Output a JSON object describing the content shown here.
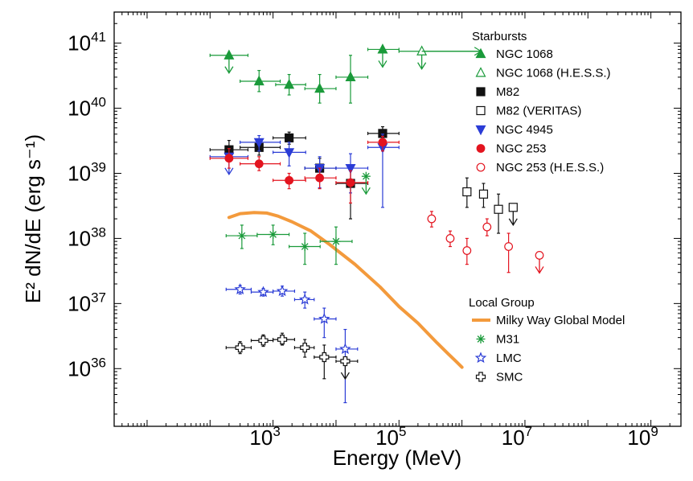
{
  "chart_data": {
    "type": "scatter",
    "title": "",
    "xlabel": "Energy (MeV)",
    "ylabel": "E² dN/dE (erg s⁻¹)",
    "xscale": "log",
    "yscale": "log",
    "xlim": [
      3,
      3000000000
    ],
    "ylim": [
      1.3e+35,
      3e+41
    ],
    "x_tick_labels": [
      {
        "base": "10",
        "exp": "3",
        "value": 1000
      },
      {
        "base": "10",
        "exp": "5",
        "value": 100000
      },
      {
        "base": "10",
        "exp": "7",
        "value": 10000000
      },
      {
        "base": "10",
        "exp": "9",
        "value": 1000000000
      }
    ],
    "y_tick_labels": [
      {
        "base": "10",
        "exp": "36",
        "value": 1e+36
      },
      {
        "base": "10",
        "exp": "37",
        "value": 1e+37
      },
      {
        "base": "10",
        "exp": "38",
        "value": 1e+38
      },
      {
        "base": "10",
        "exp": "39",
        "value": 1e+39
      },
      {
        "base": "10",
        "exp": "40",
        "value": 1e+40
      },
      {
        "base": "10",
        "exp": "41",
        "value": 1e+41
      }
    ],
    "legend_groups": [
      {
        "title": "Starbursts",
        "placement": "top-right"
      },
      {
        "title": "Local Group",
        "placement": "bottom-right"
      }
    ],
    "series": [
      {
        "name": "NGC 1068",
        "group": "Starbursts",
        "marker": "triangle-up",
        "filled": true,
        "color": "#1a9a3a",
        "points": [
          {
            "x": 200,
            "y": 6.5e+40,
            "xlo": 100,
            "xhi": 400,
            "ul": true
          },
          {
            "x": 600,
            "y": 2.6e+40,
            "xlo": 300,
            "xhi": 1300,
            "ylo": 1.8e+40,
            "yhi": 3.8e+40
          },
          {
            "x": 1800,
            "y": 2.3e+40,
            "xlo": 1100,
            "xhi": 3300,
            "ylo": 1.6e+40,
            "yhi": 3.3e+40
          },
          {
            "x": 5500,
            "y": 2e+40,
            "xlo": 3200,
            "xhi": 10000,
            "ylo": 1.2e+40,
            "yhi": 3.3e+40
          },
          {
            "x": 17000,
            "y": 3e+40,
            "xlo": 10000,
            "xhi": 32000,
            "ylo": 1.2e+40,
            "yhi": 6.5e+40
          },
          {
            "x": 55000,
            "y": 8e+40,
            "xlo": 32000,
            "xhi": 100000,
            "ul": true
          }
        ]
      },
      {
        "name": "NGC 1068 (H.E.S.S.)",
        "group": "Starbursts",
        "marker": "triangle-up",
        "filled": false,
        "color": "#1a9a3a",
        "points": [
          {
            "x": 230000,
            "y": 7.5e+40,
            "xlo": 100000,
            "xhi": 2000000,
            "ul": true
          }
        ]
      },
      {
        "name": "M82",
        "group": "Starbursts",
        "marker": "square",
        "filled": true,
        "color": "#111111",
        "points": [
          {
            "x": 200,
            "y": 2.3e+39,
            "xlo": 100,
            "xhi": 400,
            "ylo": 1.6e+39,
            "yhi": 3.2e+39
          },
          {
            "x": 600,
            "y": 2.5e+39,
            "xlo": 300,
            "xhi": 1300,
            "ylo": 1.9e+39,
            "yhi": 3.3e+39
          },
          {
            "x": 1800,
            "y": 3.5e+39,
            "xlo": 1000,
            "xhi": 3300,
            "ylo": 2.8e+39,
            "yhi": 4.3e+39
          },
          {
            "x": 5500,
            "y": 1.2e+39,
            "xlo": 3200,
            "xhi": 10000,
            "ylo": 8e+38,
            "yhi": 1.7e+39
          },
          {
            "x": 17000,
            "y": 7e+38,
            "xlo": 10000,
            "xhi": 32000,
            "ylo": 2e+38,
            "yhi": 1.3e+39
          },
          {
            "x": 55000,
            "y": 4.1e+39,
            "xlo": 32000,
            "xhi": 100000,
            "ylo": 3.1e+39,
            "yhi": 5.2e+39
          }
        ]
      },
      {
        "name": "M82 (VERITAS)",
        "group": "Starbursts",
        "marker": "square",
        "filled": false,
        "color": "#111111",
        "points": [
          {
            "x": 1200000,
            "y": 5.2e+38,
            "ylo": 3e+38,
            "yhi": 8.5e+38
          },
          {
            "x": 2200000,
            "y": 4.8e+38,
            "ylo": 3e+38,
            "yhi": 7e+38
          },
          {
            "x": 3800000,
            "y": 2.8e+38,
            "ylo": 1.2e+38,
            "yhi": 4.8e+38
          },
          {
            "x": 6500000,
            "y": 3e+38,
            "ul": true
          }
        ]
      },
      {
        "name": "NGC 4945",
        "group": "Starbursts",
        "marker": "triangle-down",
        "filled": true,
        "color": "#2b3cd6",
        "points": [
          {
            "x": 200,
            "y": 1.8e+39,
            "xlo": 100,
            "xhi": 400,
            "ul": true
          },
          {
            "x": 600,
            "y": 3e+39,
            "xlo": 300,
            "xhi": 1300,
            "ylo": 2.2e+39,
            "yhi": 3.8e+39
          },
          {
            "x": 1800,
            "y": 2.1e+39,
            "xlo": 1000,
            "xhi": 3300,
            "ylo": 1.3e+39,
            "yhi": 3e+39
          },
          {
            "x": 5500,
            "y": 1.2e+39,
            "xlo": 3200,
            "xhi": 10000,
            "ylo": 6e+38,
            "yhi": 1.8e+39
          },
          {
            "x": 17000,
            "y": 1.2e+39,
            "xlo": 10000,
            "xhi": 32000,
            "ylo": 5e+38,
            "yhi": 2e+39
          },
          {
            "x": 55000,
            "y": 2.5e+39,
            "xlo": 32000,
            "xhi": 100000,
            "ylo": 3e+38,
            "yhi": 4e+39
          }
        ]
      },
      {
        "name": "NGC 253",
        "group": "Starbursts",
        "marker": "circle",
        "filled": true,
        "color": "#e3141f",
        "points": [
          {
            "x": 200,
            "y": 1.7e+39,
            "xlo": 100,
            "xhi": 400,
            "ylo": 1.2e+39,
            "yhi": 2.4e+39
          },
          {
            "x": 600,
            "y": 1.4e+39,
            "xlo": 300,
            "xhi": 1300,
            "ylo": 1.1e+39,
            "yhi": 1.8e+39
          },
          {
            "x": 1800,
            "y": 7.8e+38,
            "xlo": 1000,
            "xhi": 3300,
            "ylo": 5.8e+38,
            "yhi": 1e+39
          },
          {
            "x": 5500,
            "y": 8.5e+38,
            "xlo": 3200,
            "xhi": 10000,
            "ylo": 5.8e+38,
            "yhi": 1.2e+39
          },
          {
            "x": 17000,
            "y": 7.2e+38,
            "xlo": 10000,
            "xhi": 32000,
            "ylo": 3.5e+38,
            "yhi": 1.1e+39
          },
          {
            "x": 55000,
            "y": 3e+39,
            "xlo": 32000,
            "xhi": 100000,
            "ylo": 2.2e+39,
            "yhi": 3.7e+39
          }
        ]
      },
      {
        "name": "NGC 253 (H.E.S.S.)",
        "group": "Starbursts",
        "marker": "circle",
        "filled": false,
        "color": "#e3141f",
        "points": [
          {
            "x": 330000,
            "y": 2e+38,
            "ylo": 1.5e+38,
            "yhi": 2.6e+38
          },
          {
            "x": 650000,
            "y": 1e+38,
            "ylo": 7.5e+37,
            "yhi": 1.3e+38
          },
          {
            "x": 1200000,
            "y": 6.5e+37,
            "ylo": 4e+37,
            "yhi": 1e+38
          },
          {
            "x": 2500000,
            "y": 1.5e+38,
            "ylo": 1.1e+38,
            "yhi": 2e+38
          },
          {
            "x": 5500000,
            "y": 7.5e+37,
            "ylo": 3e+37,
            "yhi": 1.2e+38
          },
          {
            "x": 17000000,
            "y": 5.5e+37,
            "ul": true
          }
        ]
      },
      {
        "name": "M31",
        "group": "Local Group",
        "marker": "asterisk",
        "filled": false,
        "color": "#1a9a3a",
        "points": [
          {
            "x": 320,
            "y": 1.1e+38,
            "xlo": 180,
            "xhi": 560,
            "ylo": 7e+37,
            "yhi": 1.6e+38
          },
          {
            "x": 1000,
            "y": 1.15e+38,
            "xlo": 560,
            "xhi": 1800,
            "ylo": 8e+37,
            "yhi": 1.6e+38
          },
          {
            "x": 3200,
            "y": 7.5e+37,
            "xlo": 1800,
            "xhi": 5600,
            "ylo": 4e+37,
            "yhi": 1.2e+38
          },
          {
            "x": 10000,
            "y": 9e+37,
            "xlo": 5600,
            "xhi": 18000,
            "ylo": 4e+37,
            "yhi": 1.5e+38
          },
          {
            "x": 30000,
            "y": 9e+38,
            "ul": true
          }
        ]
      },
      {
        "name": "LMC",
        "group": "Local Group",
        "marker": "star",
        "filled": false,
        "color": "#2b3cd6",
        "points": [
          {
            "x": 300,
            "y": 1.65e+37,
            "xlo": 180,
            "xhi": 450,
            "ylo": 1.4e+37,
            "yhi": 1.9e+37
          },
          {
            "x": 700,
            "y": 1.5e+37,
            "xlo": 450,
            "xhi": 1000,
            "ylo": 1.3e+37,
            "yhi": 1.7e+37
          },
          {
            "x": 1400,
            "y": 1.55e+37,
            "xlo": 1000,
            "xhi": 2200,
            "ylo": 1.3e+37,
            "yhi": 1.85e+37
          },
          {
            "x": 3200,
            "y": 1.15e+37,
            "xlo": 2200,
            "xhi": 4500,
            "ylo": 8.5e+36,
            "yhi": 1.5e+37
          },
          {
            "x": 6500,
            "y": 5.8e+36,
            "xlo": 4500,
            "xhi": 10000,
            "ylo": 3e+36,
            "yhi": 8.5e+36
          },
          {
            "x": 14000,
            "y": 2e+36,
            "xlo": 10000,
            "xhi": 22000,
            "ylo": 3e+35,
            "yhi": 4e+36
          }
        ]
      },
      {
        "name": "SMC",
        "group": "Local Group",
        "marker": "cross",
        "filled": false,
        "color": "#111111",
        "points": [
          {
            "x": 300,
            "y": 2.1e+36,
            "xlo": 180,
            "xhi": 450,
            "ylo": 1.7e+36,
            "yhi": 2.6e+36
          },
          {
            "x": 700,
            "y": 2.7e+36,
            "xlo": 450,
            "xhi": 1000,
            "ylo": 2.2e+36,
            "yhi": 3.3e+36
          },
          {
            "x": 1400,
            "y": 2.8e+36,
            "xlo": 1000,
            "xhi": 2200,
            "ylo": 2.3e+36,
            "yhi": 3.5e+36
          },
          {
            "x": 3200,
            "y": 2.1e+36,
            "xlo": 2200,
            "xhi": 4500,
            "ylo": 1.5e+36,
            "yhi": 2.8e+36
          },
          {
            "x": 6500,
            "y": 1.5e+36,
            "xlo": 4500,
            "xhi": 10000,
            "ylo": 7e+35,
            "yhi": 2.3e+36
          },
          {
            "x": 14000,
            "y": 1.3e+36,
            "xlo": 10000,
            "xhi": 22000,
            "ul": true
          }
        ]
      }
    ],
    "lines": [
      {
        "name": "Milky Way Global Model",
        "group": "Local Group",
        "color": "#f39a3c",
        "x": [
          200,
          300,
          500,
          800,
          1200,
          2000,
          4000,
          8000,
          20000,
          50000,
          100000,
          200000,
          400000,
          600000,
          800000,
          1000000
        ],
        "y": [
          2.1e+38,
          2.4e+38,
          2.5e+38,
          2.45e+38,
          2.2e+38,
          1.8e+38,
          1.3e+38,
          8e+37,
          4e+37,
          1.8e+37,
          9e+36,
          5e+36,
          2.5e+36,
          1.7e+36,
          1.3e+36,
          1.05e+36
        ]
      }
    ]
  }
}
